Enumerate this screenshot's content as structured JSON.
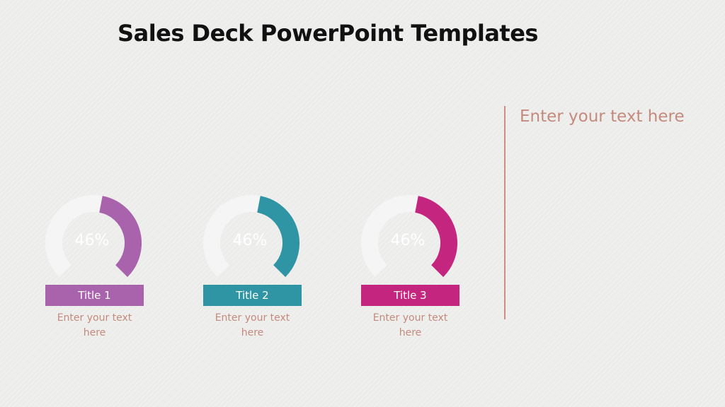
{
  "slide": {
    "title": "Sales Deck PowerPoint Templates",
    "side_text": "Enter your text here",
    "divider_color": "#c98f84",
    "text_color": "#c48a7c"
  },
  "chart_data": {
    "type": "gauge",
    "track_color": "#f5f5f5",
    "series": [
      {
        "label": "46%",
        "value": 46,
        "title": "Title 1",
        "description": "Enter your text here",
        "color": "#a963ad"
      },
      {
        "label": "46%",
        "value": 46,
        "title": "Title 2",
        "description": "Enter your text here",
        "color": "#2f95a4"
      },
      {
        "label": "46%",
        "value": 46,
        "title": "Title 3",
        "description": "Enter your text here",
        "color": "#c4267f"
      }
    ]
  }
}
